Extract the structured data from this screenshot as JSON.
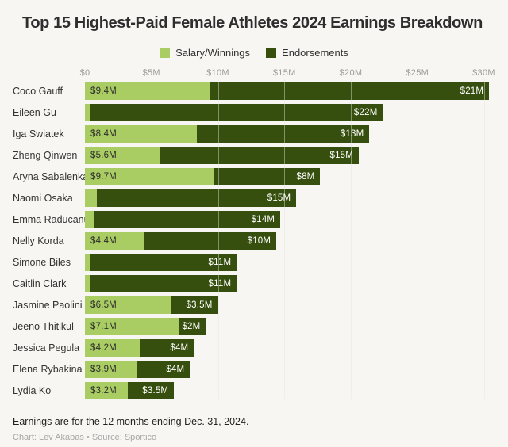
{
  "chart_data": {
    "type": "bar",
    "orientation": "horizontal",
    "stacked": true,
    "title": "Top 15 Highest-Paid Female Athletes 2024 Earnings Breakdown",
    "categories": [
      "Coco Gauff",
      "Eileen Gu",
      "Iga Swiatek",
      "Zheng Qinwen",
      "Aryna Sabalenka",
      "Naomi Osaka",
      "Emma Raducanu",
      "Nelly Korda",
      "Simone Biles",
      "Caitlin Clark",
      "Jasmine Paolini",
      "Jeeno Thitikul",
      "Jessica Pegula",
      "Elena Rybakina",
      "Lydia Ko"
    ],
    "series": [
      {
        "name": "Salary/Winnings",
        "color": "#a9cc63",
        "label_color": "#2d2d2d",
        "values": [
          9.4,
          0.1,
          8.4,
          5.6,
          9.7,
          0.9,
          0.7,
          4.4,
          0.2,
          0.1,
          6.5,
          7.1,
          4.2,
          3.9,
          3.2
        ],
        "labels": [
          "$9.4M",
          "",
          "$8.4M",
          "$5.6M",
          "$9.7M",
          "",
          "",
          "$4.4M",
          "",
          "",
          "$6.5M",
          "$7.1M",
          "$4.2M",
          "$3.9M",
          "$3.2M"
        ]
      },
      {
        "name": "Endorsements",
        "color": "#374f0e",
        "label_color": "#ffffff",
        "values": [
          21,
          22,
          13,
          15,
          8,
          15,
          14,
          10,
          11,
          11,
          3.5,
          2,
          4,
          4,
          3.5
        ],
        "labels": [
          "$21M",
          "$22M",
          "$13M",
          "$15M",
          "$8M",
          "$15M",
          "$14M",
          "$10M",
          "$11M",
          "$11M",
          "$3.5M",
          "$2M",
          "$4M",
          "$4M",
          "$3.5M"
        ]
      }
    ],
    "x_axis": {
      "tick_labels": [
        "$0",
        "$5M",
        "$10M",
        "$15M",
        "$20M",
        "$25M",
        "$30M"
      ],
      "tick_values": [
        0,
        5,
        10,
        15,
        20,
        25,
        30
      ],
      "unit": "millions USD",
      "max_total": 30.4
    },
    "gridline_values": [
      5,
      10,
      15,
      20,
      25,
      30
    ],
    "grid": true,
    "legend_position": "top"
  },
  "footer": {
    "note": "Earnings are for the 12 months ending Dec. 31, 2024.",
    "credit": "Chart: Lev Akabas • Source: Sportico"
  },
  "colors": {
    "background": "#f7f6f2",
    "salary_green": "#a9cc63",
    "endorsements_green": "#374f0e",
    "axis_label": "#9c9c9c",
    "title_text": "#2e2e2e"
  }
}
